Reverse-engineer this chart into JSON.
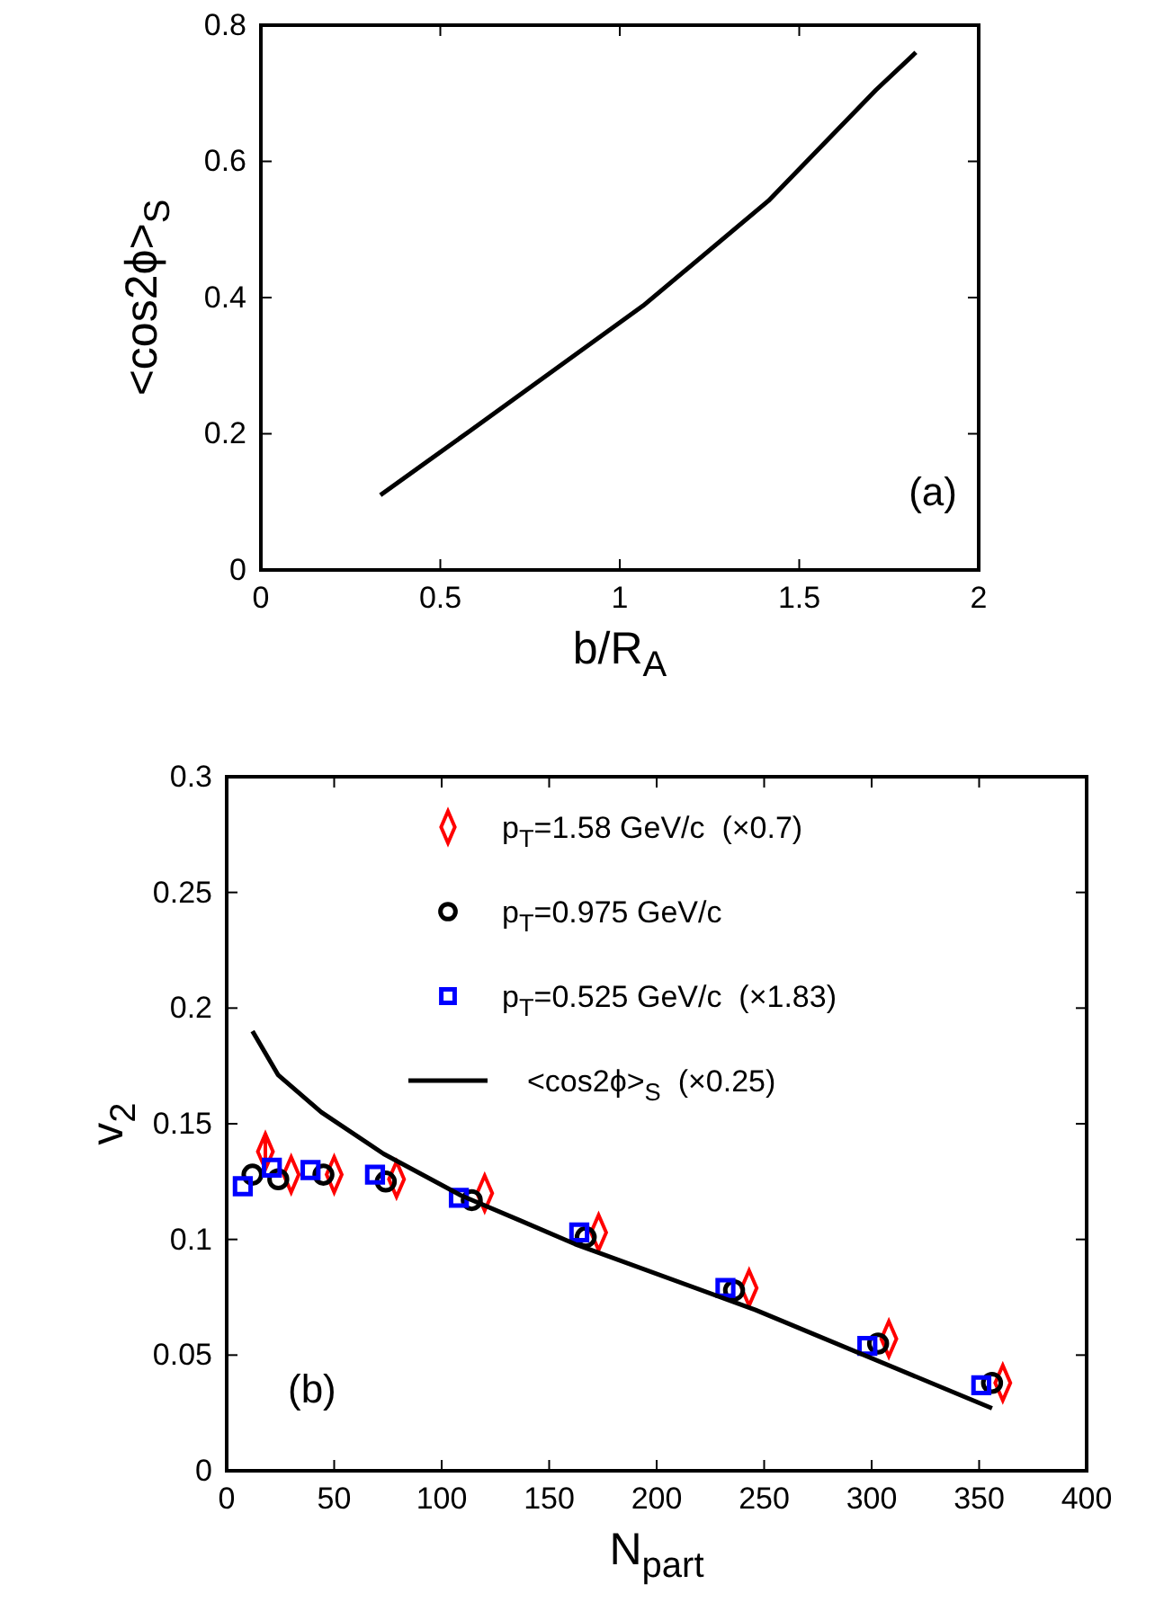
{
  "chart_data": [
    {
      "type": "line",
      "xlabel": "b/R$_{A}$",
      "ylabel": "<cos2ϕ>$_{S}$",
      "annotations": [
        "(a)"
      ],
      "xlim": [
        0,
        2
      ],
      "xticks": [
        0,
        0.5,
        1,
        1.5,
        2
      ],
      "ylim": [
        0,
        0.8
      ],
      "yticks": [
        0,
        0.2,
        0.4,
        0.6,
        0.8
      ],
      "grid": false,
      "legend": false,
      "series": [
        {
          "color": "#000000",
          "x": [
            0.333,
            0.582,
            1.065,
            1.414,
            1.714,
            1.825
          ],
          "values": [
            0.11,
            0.204,
            0.388,
            0.542,
            0.705,
            0.76
          ]
        }
      ]
    },
    {
      "type": "scatter",
      "xlabel": "N$_{part}$",
      "ylabel": "v$_{2}$",
      "annotations": [
        "(b)"
      ],
      "xlim": [
        0,
        400
      ],
      "xticks": [
        0,
        50,
        100,
        150,
        200,
        250,
        300,
        350,
        400
      ],
      "ylim": [
        0,
        0.3
      ],
      "yticks": [
        0,
        0.05,
        0.1,
        0.15,
        0.2,
        0.25,
        0.3
      ],
      "grid": false,
      "legend": "top right",
      "series": [
        {
          "name": "p$_{T}$=1.58 GeV/c  (×0.7)",
          "color": "#ff0000",
          "marker": "diamond",
          "x": [
            18,
            30,
            50,
            79,
            120,
            173,
            243,
            308,
            361
          ],
          "values": [
            0.138,
            0.128,
            0.128,
            0.126,
            0.12,
            0.103,
            0.079,
            0.057,
            0.038
          ],
          "errors": [
            0.006,
            null,
            null,
            null,
            null,
            null,
            null,
            null,
            null
          ]
        },
        {
          "name": "p$_{T}$=0.975 GeV/c",
          "color": "#000000",
          "marker": "circle",
          "x": [
            12,
            24,
            45,
            74,
            114,
            167,
            236,
            303,
            356
          ],
          "values": [
            0.128,
            0.126,
            0.128,
            0.125,
            0.117,
            0.101,
            0.078,
            0.055,
            0.038
          ]
        },
        {
          "name": "p$_{T}$=0.525 GeV/c  (×1.83)",
          "color": "#0000ff",
          "marker": "square",
          "x": [
            7.5,
            21,
            39,
            69,
            108,
            164,
            232,
            298,
            351
          ],
          "values": [
            0.123,
            0.131,
            0.13,
            0.128,
            0.118,
            0.103,
            0.079,
            0.054,
            0.037
          ]
        },
        {
          "name": "<cos2ϕ>$_{S}$  (×0.25)",
          "type": "line",
          "color": "#000000",
          "marker": "none",
          "x": [
            12,
            24,
            44,
            73,
            109,
            137,
            162,
            246,
            356
          ],
          "values": [
            0.19,
            0.171,
            0.155,
            0.137,
            0.119,
            0.108,
            0.098,
            0.0695,
            0.027
          ]
        }
      ]
    }
  ]
}
